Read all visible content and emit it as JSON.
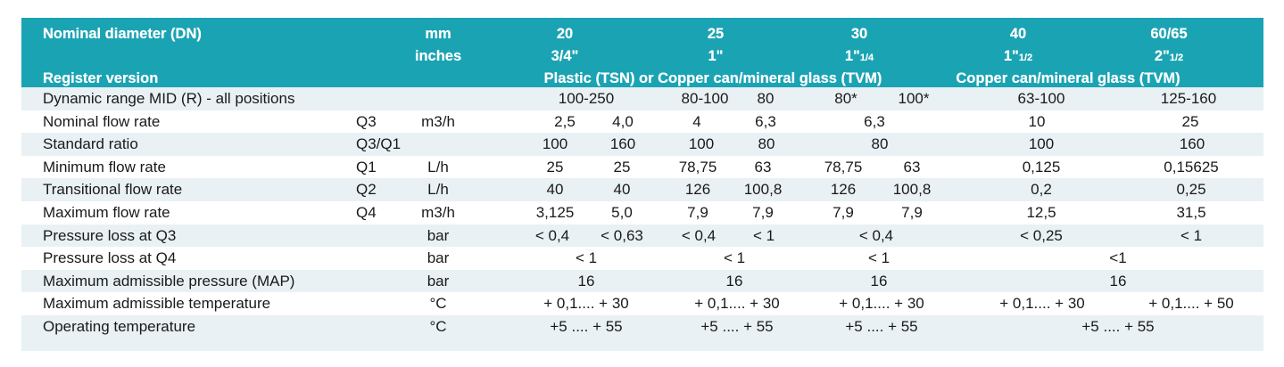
{
  "header": {
    "nominal_diameter": "Nominal diameter (DN)",
    "register_version": "Register version",
    "unit_mm": "mm",
    "unit_inches": "inches",
    "dn20": "20",
    "in20": "3/4\"",
    "dn25": "25",
    "in25": "1\"",
    "dn30": "30",
    "in30_main": "1\"",
    "in30_sub": "1/4",
    "dn40": "40",
    "in40_main": "1\"",
    "in40_sub": "1/2",
    "dn60": "60/65",
    "in60_main": "2\"",
    "in60_sub": "1/2",
    "reg_plastic_copper": "Plastic (TSN) or Copper can/mineral glass (TVM)",
    "reg_copper": "Copper can/mineral glass (TVM)"
  },
  "colors": {
    "header_bg": "#1aa3b3",
    "header_text": "#ffffff",
    "row_alt": "#e9f1f4",
    "text": "#1a1a1a"
  },
  "rows": [
    {
      "label": "Dynamic range MID (R) - all positions",
      "symbol": "",
      "unit": "",
      "values": [
        "100-250",
        "80-100",
        "80",
        "80*",
        "100*",
        "63-100",
        "125-160"
      ]
    },
    {
      "label": "Nominal flow rate",
      "symbol": "Q3",
      "unit": "m3/h",
      "values": [
        "2,5",
        "4,0",
        "4",
        "6,3",
        "6,3",
        "10",
        "25"
      ]
    },
    {
      "label": "Standard ratio",
      "symbol": "Q3/Q1",
      "unit": "",
      "values": [
        "100",
        "160",
        "100",
        "80",
        "80",
        "100",
        "160"
      ]
    },
    {
      "label": "Minimum flow rate",
      "symbol": "Q1",
      "unit": "L/h",
      "values": [
        "25",
        "25",
        "78,75",
        "63",
        "78,75",
        "63",
        "0,125",
        "0,15625"
      ]
    },
    {
      "label": "Transitional flow rate",
      "symbol": "Q2",
      "unit": "L/h",
      "values": [
        "40",
        "40",
        "126",
        "100,8",
        "126",
        "100,8",
        "0,2",
        "0,25"
      ]
    },
    {
      "label": "Maximum flow rate",
      "symbol": "Q4",
      "unit": "m3/h",
      "values": [
        "3,125",
        "5,0",
        "7,9",
        "7,9",
        "7,9",
        "7,9",
        "12,5",
        "31,5"
      ]
    },
    {
      "label": "Pressure loss at Q3",
      "symbol": "",
      "unit": "bar",
      "values": [
        "< 0,4",
        "< 0,63",
        "< 0,4",
        "< 1",
        "< 0,4",
        "< 0,25",
        "< 1"
      ]
    },
    {
      "label": "Pressure loss at Q4",
      "symbol": "",
      "unit": "bar",
      "values": [
        "< 1",
        "< 1",
        "< 1",
        "<1"
      ]
    },
    {
      "label": "Maximum admissible pressure (MAP)",
      "symbol": "",
      "unit": "bar",
      "values": [
        "16",
        "16",
        "16",
        "16"
      ]
    },
    {
      "label": "Maximum admissible temperature",
      "symbol": "",
      "unit": "°C",
      "values": [
        "+ 0,1.... + 30",
        "+ 0,1.... + 30",
        "+ 0,1.... + 30",
        "+ 0,1.... + 30",
        "+ 0,1.... + 50"
      ]
    },
    {
      "label": "Operating temperature",
      "symbol": "",
      "unit": "°C",
      "values": [
        "+5 .... + 55",
        "+5 .... + 55",
        "+5 .... + 55",
        "+5 .... + 55"
      ]
    }
  ]
}
